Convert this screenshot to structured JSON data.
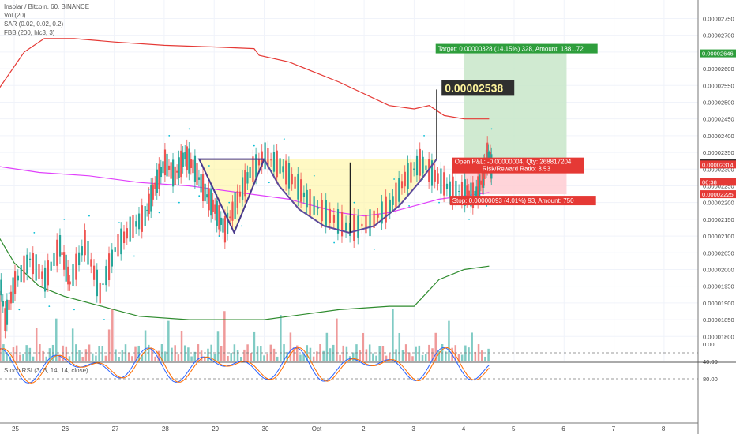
{
  "legend": {
    "symbol": "Insolar / Bitcoin, 60, BINANCE",
    "vol": "Vol (20)",
    "sar": "SAR (0.02, 0.02, 0.2)",
    "fbb": "FBB (200, hlc3, 3)"
  },
  "rsi_legend": "Stoch RSI (3, 3, 14, 14, close)",
  "chart_data": {
    "type": "line",
    "title": "",
    "price_axis": {
      "min": 1.77e-05,
      "max": 2.77e-05,
      "ticks": [
        "0.00002750",
        "0.00002700",
        "0.00002650",
        "0.00002600",
        "0.00002550",
        "0.00002500",
        "0.00002450",
        "0.00002400",
        "0.00002350",
        "0.00002300",
        "0.00002250",
        "0.00002200",
        "0.00002150",
        "0.00002100",
        "0.00002050",
        "0.00002000",
        "0.00001950",
        "0.00001900",
        "0.00001850",
        "0.00001800"
      ],
      "tick_values": [
        2.75e-05,
        2.7e-05,
        2.65e-05,
        2.6e-05,
        2.55e-05,
        2.5e-05,
        2.45e-05,
        2.4e-05,
        2.35e-05,
        2.3e-05,
        2.25e-05,
        2.2e-05,
        2.15e-05,
        2.1e-05,
        2.05e-05,
        2e-05,
        1.95e-05,
        1.9e-05,
        1.85e-05,
        1.8e-05
      ]
    },
    "time_axis": {
      "labels": [
        "25",
        "26",
        "27",
        "28",
        "29",
        "30",
        "Oct",
        "2",
        "3",
        "4",
        "5",
        "6",
        "7",
        "8"
      ],
      "positions": [
        0,
        1,
        2,
        3,
        4,
        5,
        6,
        7,
        8,
        9,
        10,
        11,
        12,
        13
      ]
    },
    "price_markers": [
      {
        "label": "0.00002646",
        "value": 2.646e-05,
        "color": "#2e9e3c"
      },
      {
        "label": "0.00002318",
        "value": 2.318e-05,
        "color": "#333333"
      },
      {
        "label": "0.00002314",
        "value": 2.314e-05,
        "color": "#e53935"
      },
      {
        "label": "06:38",
        "value": 2.262e-05,
        "color": "#e53935"
      },
      {
        "label": "0.00002225",
        "value": 2.225e-05,
        "color": "#e53935"
      }
    ],
    "annotations": {
      "peak_label": "0.00002538",
      "peak_value": 2.538e-05,
      "target_label": "Target: 0.00000328 (14.15%) 328, Amount: 1881.72",
      "pnl_label": "Open P&L: -0.00000004, Qty: 268817204",
      "rr_label": "Risk/Reward Ratio: 3.53",
      "stop_label": "Stop: 0.00000093 (4.01%) 93, Amount: 750",
      "entry_value": 2.318e-05,
      "target_value": 2.646e-05,
      "stop_value": 2.225e-05
    },
    "fbb_upper": [
      [
        -0.4,
        2.52e-05
      ],
      [
        0.2,
        2.65e-05
      ],
      [
        0.6,
        2.69e-05
      ],
      [
        1.2,
        2.69e-05
      ],
      [
        2,
        2.68e-05
      ],
      [
        3,
        2.67e-05
      ],
      [
        4,
        2.665e-05
      ],
      [
        4.8,
        2.66e-05
      ],
      [
        4.9,
        2.64e-05
      ],
      [
        5.5,
        2.62e-05
      ],
      [
        6.5,
        2.56e-05
      ],
      [
        7.5,
        2.49e-05
      ],
      [
        8,
        2.48e-05
      ],
      [
        8.3,
        2.49e-05
      ],
      [
        8.6,
        2.46e-05
      ],
      [
        9,
        2.45e-05
      ],
      [
        9.5,
        2.45e-05
      ]
    ],
    "fbb_basis": [
      [
        -0.4,
        2.31e-05
      ],
      [
        0.5,
        2.29e-05
      ],
      [
        1.5,
        2.28e-05
      ],
      [
        2.5,
        2.26e-05
      ],
      [
        3.5,
        2.25e-05
      ],
      [
        4.5,
        2.23e-05
      ],
      [
        5.5,
        2.21e-05
      ],
      [
        6.5,
        2.17e-05
      ],
      [
        7,
        2.16e-05
      ],
      [
        7.5,
        2.17e-05
      ],
      [
        8,
        2.19e-05
      ],
      [
        8.5,
        2.21e-05
      ],
      [
        9,
        2.22e-05
      ],
      [
        9.5,
        2.23e-05
      ]
    ],
    "fbb_lower": [
      [
        -0.4,
        2.12e-05
      ],
      [
        0,
        2.02e-05
      ],
      [
        0.5,
        1.95e-05
      ],
      [
        1,
        1.92e-05
      ],
      [
        2,
        1.88e-05
      ],
      [
        2.5,
        1.86e-05
      ],
      [
        3.5,
        1.85e-05
      ],
      [
        5,
        1.85e-05
      ],
      [
        5.5,
        1.86e-05
      ],
      [
        6.5,
        1.88e-05
      ],
      [
        7.5,
        1.89e-05
      ],
      [
        8,
        1.89e-05
      ],
      [
        8.5,
        1.97e-05
      ],
      [
        9,
        2e-05
      ],
      [
        9.5,
        2.01e-05
      ]
    ],
    "price_line": [
      [
        -0.4,
        2.09e-05
      ],
      [
        -0.2,
        1.85e-05
      ],
      [
        0,
        1.96e-05
      ],
      [
        0.3,
        2.03e-05
      ],
      [
        0.6,
        1.97e-05
      ],
      [
        0.9,
        2.07e-05
      ],
      [
        1.1,
        1.96e-05
      ],
      [
        1.4,
        2.08e-05
      ],
      [
        1.7,
        1.93e-05
      ],
      [
        2,
        2.06e-05
      ],
      [
        2.3,
        2.12e-05
      ],
      [
        2.6,
        2.16e-05
      ],
      [
        2.8,
        2.25e-05
      ],
      [
        3,
        2.32e-05
      ],
      [
        3.2,
        2.28e-05
      ],
      [
        3.4,
        2.34e-05
      ],
      [
        3.6,
        2.3e-05
      ],
      [
        3.8,
        2.23e-05
      ],
      [
        4,
        2.18e-05
      ],
      [
        4.2,
        2.12e-05
      ],
      [
        4.45,
        2.21e-05
      ],
      [
        4.7,
        2.29e-05
      ],
      [
        5,
        2.34e-05
      ],
      [
        5.3,
        2.31e-05
      ],
      [
        5.6,
        2.26e-05
      ],
      [
        5.9,
        2.2e-05
      ],
      [
        6.3,
        2.16e-05
      ],
      [
        6.7,
        2.12e-05
      ],
      [
        7.1,
        2.14e-05
      ],
      [
        7.5,
        2.19e-05
      ],
      [
        7.8,
        2.27e-05
      ],
      [
        8.1,
        2.32e-05
      ],
      [
        8.4,
        2.28e-05
      ],
      [
        8.7,
        2.24e-05
      ],
      [
        9,
        2.23e-05
      ],
      [
        9.2,
        2.22e-05
      ],
      [
        9.35,
        2.27e-05
      ],
      [
        9.45,
        2.34e-05
      ],
      [
        9.55,
        2.3e-05
      ]
    ],
    "pattern": {
      "triangle": [
        [
          3.7,
          2.33e-05
        ],
        [
          4.4,
          2.11e-05
        ],
        [
          5.0,
          2.33e-05
        ]
      ],
      "cup": [
        [
          5.0,
          2.33e-05
        ],
        [
          5.3,
          2.25e-05
        ],
        [
          5.7,
          2.18e-05
        ],
        [
          6.2,
          2.13e-05
        ],
        [
          6.7,
          2.11e-05
        ],
        [
          7.2,
          2.13e-05
        ],
        [
          7.7,
          2.19e-05
        ],
        [
          8.1,
          2.26e-05
        ],
        [
          8.45,
          2.33e-05
        ]
      ],
      "drop_line": [
        [
          6.72,
          2.32e-05
        ],
        [
          6.72,
          2.11e-05
        ]
      ],
      "spike": [
        [
          8.45,
          2.33e-05
        ],
        [
          8.45,
          2.538e-05
        ]
      ]
    },
    "rsi": {
      "ylim": [
        -5,
        100
      ],
      "ticks": [
        "80.00",
        "40.00",
        "0.00"
      ],
      "tick_values": [
        80,
        40,
        0
      ],
      "band": [
        20,
        80
      ]
    }
  }
}
